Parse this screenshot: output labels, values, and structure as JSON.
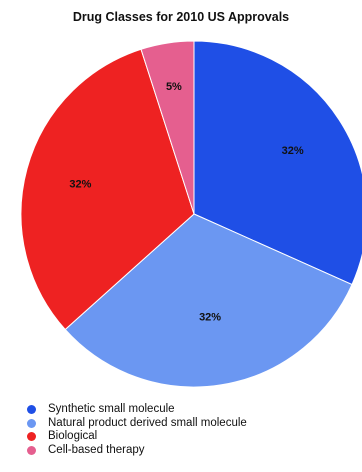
{
  "chart_data": {
    "type": "pie",
    "title": "Drug Classes for 2010 US Approvals",
    "slices": [
      {
        "label": "Synthetic small molecule",
        "value": 32,
        "display": "32%",
        "color": "#1f4fe6"
      },
      {
        "label": "Natural product derived small molecule",
        "value": 32,
        "display": "32%",
        "color": "#6b97f2"
      },
      {
        "label": "Biological",
        "value": 32,
        "display": "32%",
        "color": "#ee2222"
      },
      {
        "label": "Cell-based therapy",
        "value": 5,
        "display": "5%",
        "color": "#e55f8f"
      }
    ],
    "legend_position": "bottom-left"
  }
}
